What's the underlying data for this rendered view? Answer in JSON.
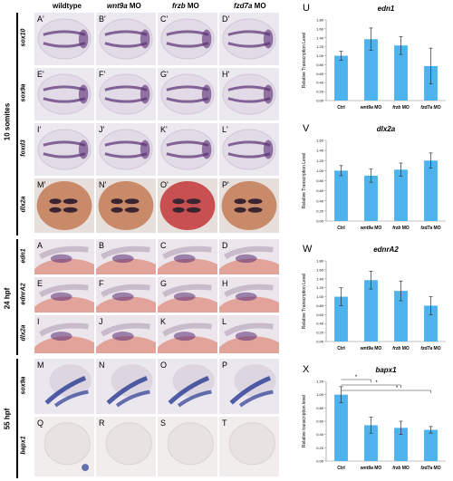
{
  "columns": [
    {
      "prefix": "",
      "gene": "wildtype",
      "suffix": ""
    },
    {
      "prefix": "",
      "gene": "wnt9a",
      "suffix": " MO"
    },
    {
      "prefix": "",
      "gene": "frzb",
      "suffix": " MO"
    },
    {
      "prefix": "",
      "gene": "fzd7a",
      "suffix": " MO"
    }
  ],
  "groups": [
    "10 somites",
    "24 hpf",
    "55 hpf"
  ],
  "rows": [
    {
      "label": "sox10",
      "letters": [
        "A'",
        "B'",
        "C'",
        "D'"
      ],
      "style": "dorsal"
    },
    {
      "label": "sox9a",
      "letters": [
        "E'",
        "F'",
        "G'",
        "H'"
      ],
      "style": "dorsal"
    },
    {
      "label": "foxd3",
      "letters": [
        "I'",
        "J'",
        "K'",
        "L'"
      ],
      "style": "dorsal"
    },
    {
      "label": "dlx2a",
      "letters": [
        "M'",
        "N'",
        "O'",
        "P'"
      ],
      "style": "orange"
    },
    {
      "label": "edn1",
      "letters": [
        "A",
        "B",
        "C",
        "D"
      ],
      "style": "lateral"
    },
    {
      "label": "ednrA2",
      "letters": [
        "E",
        "F",
        "G",
        "H"
      ],
      "style": "lateral"
    },
    {
      "label": "dlx2a",
      "letters": [
        "I",
        "J",
        "K",
        "L"
      ],
      "style": "lateral"
    },
    {
      "label": "sox9a",
      "letters": [
        "M",
        "N",
        "O",
        "P"
      ],
      "style": "head"
    },
    {
      "label": "bapx1",
      "letters": [
        "Q",
        "R",
        "S",
        "T"
      ],
      "style": "blank"
    }
  ],
  "colors": {
    "bar": "#4db3ec",
    "err": "#333333",
    "stain": "#5a2d74"
  },
  "chart_data": [
    {
      "panel": "U",
      "type": "bar",
      "title": "edn1",
      "ylabel": "Relative Transcription Level",
      "categories": [
        "Ctrl",
        "wnt9a MO",
        "frzb MO",
        "fzd7a MO"
      ],
      "values": [
        1.0,
        1.37,
        1.23,
        0.77
      ],
      "errors": [
        0.1,
        0.25,
        0.2,
        0.4
      ],
      "ylim": [
        0,
        1.8
      ],
      "yticks": [
        "0.00",
        "0.20",
        "0.40",
        "0.60",
        "0.80",
        "1.00",
        "1.20",
        "1.40",
        "1.60",
        "1.80"
      ],
      "sig": []
    },
    {
      "panel": "V",
      "type": "bar",
      "title": "dlx2a",
      "ylabel": "Relative Transcription Level",
      "categories": [
        "Ctrl",
        "wnt9a MO",
        "frzb MO",
        "fzd7a MO"
      ],
      "values": [
        1.0,
        0.9,
        1.02,
        1.2
      ],
      "errors": [
        0.1,
        0.13,
        0.13,
        0.15
      ],
      "ylim": [
        0,
        1.6
      ],
      "yticks": [
        "0.00",
        "0.20",
        "0.40",
        "0.60",
        "0.80",
        "1.00",
        "1.20",
        "1.40",
        "1.60"
      ],
      "sig": []
    },
    {
      "panel": "W",
      "type": "bar",
      "title": "ednrA2",
      "ylabel": "Relative Transcription Level",
      "categories": [
        "Ctrl",
        "wnt9a MO",
        "frzb MO",
        "fzd7a MO"
      ],
      "values": [
        1.0,
        1.37,
        1.13,
        0.8
      ],
      "errors": [
        0.2,
        0.2,
        0.22,
        0.2
      ],
      "ylim": [
        0,
        1.8
      ],
      "yticks": [
        "0.00",
        "0.20",
        "0.40",
        "0.60",
        "0.80",
        "1.00",
        "1.20",
        "1.40",
        "1.60",
        "1.80"
      ],
      "sig": []
    },
    {
      "panel": "X",
      "type": "bar",
      "title": "bapx1",
      "ylabel": "Relative transcription level",
      "categories": [
        "Ctrl",
        "wnt9a MO",
        "frzb MO",
        "fzd7a MO"
      ],
      "values": [
        1.0,
        0.54,
        0.5,
        0.47
      ],
      "errors": [
        0.12,
        0.12,
        0.1,
        0.05
      ],
      "ylim": [
        0,
        1.2
      ],
      "yticks": [
        "0.00",
        "0.20",
        "0.40",
        "0.60",
        "0.80",
        "1.00",
        "1.20"
      ],
      "sig": [
        {
          "from": 0,
          "to": 1,
          "label": "*"
        },
        {
          "from": 0,
          "to": 2,
          "label": "*"
        },
        {
          "from": 0,
          "to": 3,
          "label": "*"
        }
      ]
    }
  ]
}
